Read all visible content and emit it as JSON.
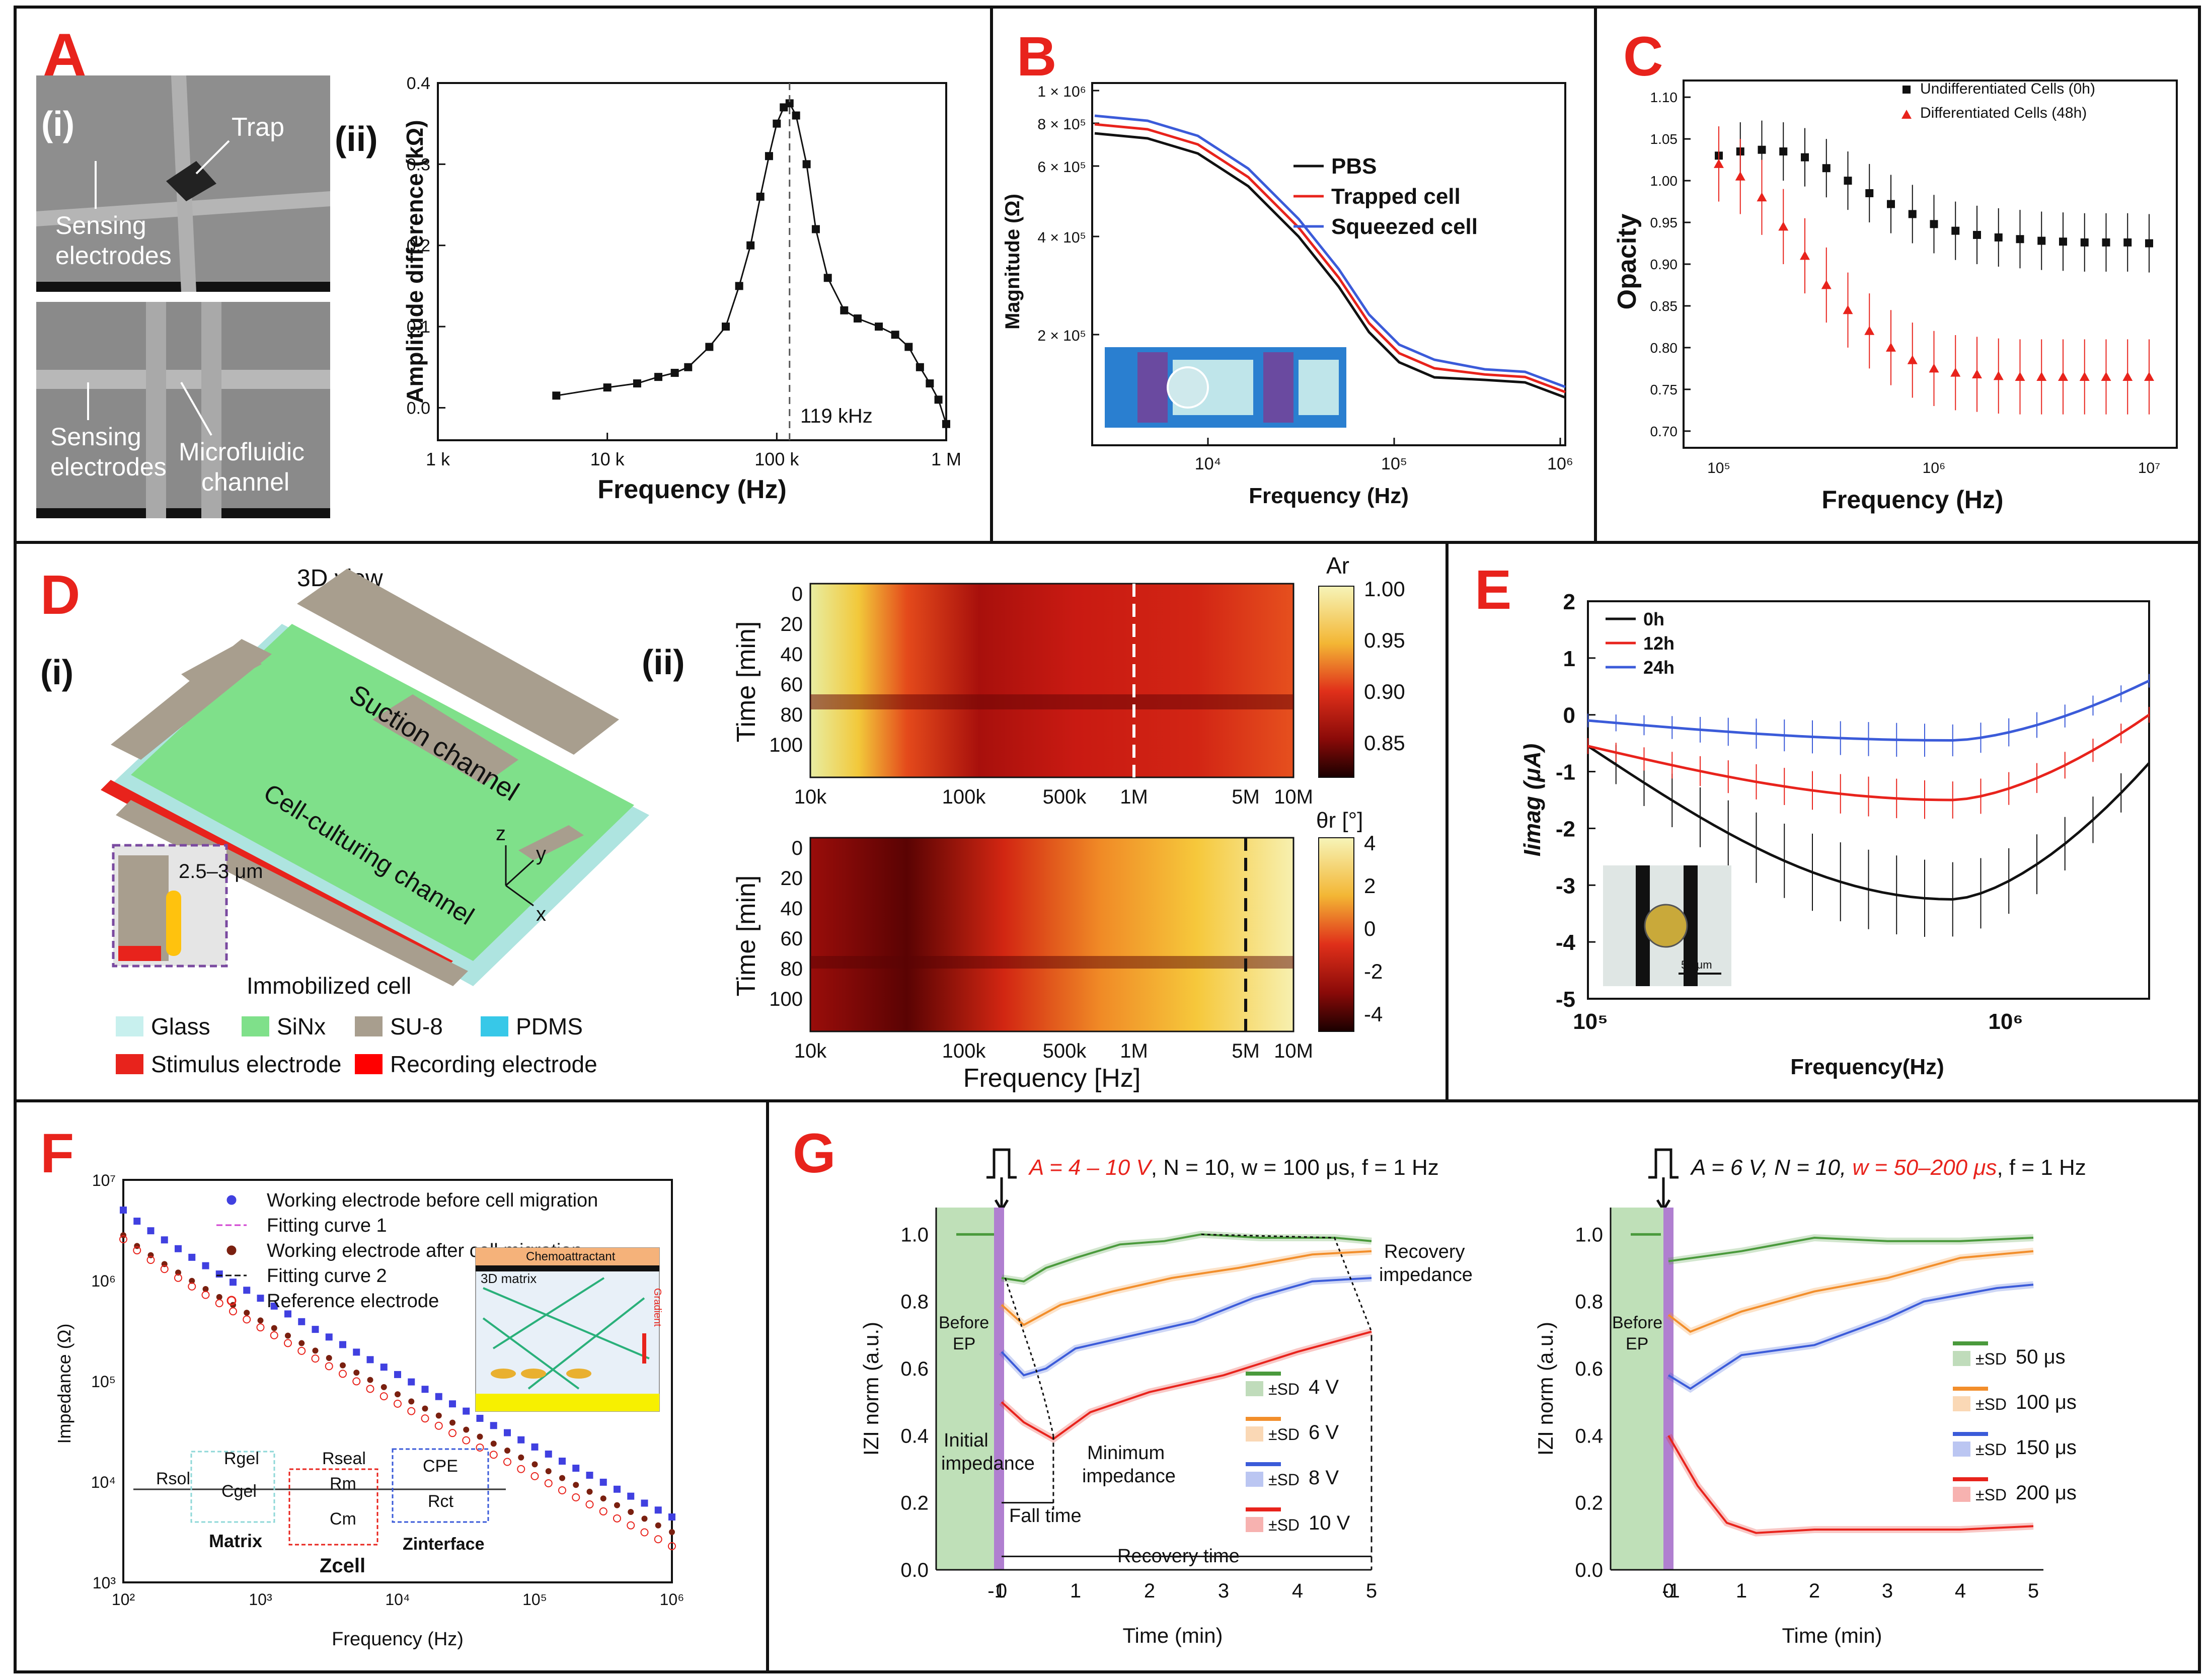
{
  "colors": {
    "red": "#e8231c",
    "blue": "#3b5bd9",
    "black": "#111111",
    "green": "#4a9a3c",
    "orange": "#f28e2b",
    "purple": "#b07fd0"
  },
  "panelA": {
    "label": "A",
    "sub_i": "(i)",
    "sub_ii": "(ii)",
    "sem": {
      "trap": "Trap",
      "sensing": "Sensing electrodes",
      "sensing2": "Sensing electrodes",
      "microfluidic": "Microfluidic channel"
    },
    "chart": {
      "type": "line",
      "title": "",
      "xlabel": "Frequency (Hz)",
      "ylabel": "Amplitude difference (kΩ)",
      "xticks": [
        "1 k",
        "10 k",
        "100 k",
        "1 M"
      ],
      "yticks": [
        "0.0",
        "0.1",
        "0.2",
        "0.3",
        "0.4"
      ],
      "annotation": "119 kHz",
      "x": [
        5000,
        10000,
        15000,
        20000,
        25000,
        30000,
        40000,
        50000,
        60000,
        70000,
        80000,
        90000,
        100000,
        110000,
        119000,
        130000,
        150000,
        170000,
        200000,
        250000,
        300000,
        400000,
        500000,
        600000,
        700000,
        800000,
        900000,
        1000000
      ],
      "y": [
        0.015,
        0.025,
        0.03,
        0.038,
        0.043,
        0.05,
        0.075,
        0.1,
        0.15,
        0.2,
        0.26,
        0.31,
        0.35,
        0.37,
        0.375,
        0.36,
        0.3,
        0.22,
        0.16,
        0.12,
        0.11,
        0.1,
        0.09,
        0.075,
        0.05,
        0.03,
        0.01,
        -0.02
      ]
    }
  },
  "panelB": {
    "label": "B",
    "chart": {
      "type": "line",
      "xlabel": "Frequency (Hz)",
      "ylabel": "Magnitude (Ω)",
      "xticks": [
        "10⁴",
        "10⁵",
        "10⁶"
      ],
      "yticks": [
        "1 × 10⁶",
        "8 × 10⁵",
        "6 × 10⁵",
        "4 × 10⁵",
        "2 × 10⁵"
      ],
      "series": [
        {
          "name": "PBS",
          "color": "#111111"
        },
        {
          "name": "Trapped cell",
          "color": "#e8231c"
        },
        {
          "name": "Squeezed cell",
          "color": "#3b5bd9"
        }
      ]
    }
  },
  "panelC": {
    "label": "C",
    "chart": {
      "type": "scatter",
      "xlabel": "Frequency (Hz)",
      "ylabel": "Opacity",
      "xticks": [
        "10⁵",
        "10⁶",
        "10⁷"
      ],
      "yticks": [
        "0.70",
        "0.75",
        "0.80",
        "0.85",
        "0.90",
        "0.95",
        "1.00",
        "1.05",
        "1.10"
      ],
      "series": [
        {
          "name": "Undifferentiated Cells (0h)",
          "color": "#111111",
          "values": [
            1.03,
            1.035,
            1.037,
            1.035,
            1.028,
            1.015,
            1.0,
            0.985,
            0.972,
            0.96,
            0.948,
            0.94,
            0.935,
            0.932,
            0.93,
            0.928,
            0.927,
            0.926,
            0.926,
            0.926,
            0.925
          ]
        },
        {
          "name": "Differentiated Cells (48h)",
          "color": "#e8231c",
          "values": [
            1.02,
            1.005,
            0.98,
            0.945,
            0.91,
            0.875,
            0.845,
            0.82,
            0.8,
            0.785,
            0.775,
            0.77,
            0.768,
            0.766,
            0.765,
            0.765,
            0.765,
            0.765,
            0.765,
            0.765,
            0.765
          ]
        }
      ]
    }
  },
  "panelD": {
    "label": "D",
    "sub_i": "(i)",
    "sub_ii": "(ii)",
    "view3d": "3D view",
    "suction": "Suction channel",
    "culturing": "Cell-culturing channel",
    "gap": "2.5–3 μm",
    "immobilized": "Immobilized cell",
    "axz": "z",
    "axy": "y",
    "axx": "x",
    "legend": {
      "glass": "Glass",
      "sin": "SiNx",
      "su8": "SU-8",
      "pdms": "PDMS",
      "stimulus": "Stimulus electrode",
      "recording": "Recording electrode"
    },
    "heat1": {
      "cbar": "Ar",
      "ticks": [
        "1.00",
        "0.95",
        "0.90",
        "0.85"
      ]
    },
    "heat2": {
      "cbar": "θr [°]",
      "ticks": [
        "4",
        "2",
        "0",
        "-2",
        "-4"
      ]
    },
    "ylabel": "Time [min]",
    "yticks": [
      "0",
      "20",
      "40",
      "60",
      "80",
      "100"
    ],
    "xticks": [
      "10k",
      "100k",
      "500k",
      "1M",
      "5M",
      "10M"
    ],
    "xlabel": "Frequency [Hz]"
  },
  "panelE": {
    "label": "E",
    "chart": {
      "type": "line",
      "xlabel": "Frequency(Hz)",
      "ylabel": "Iimag (μA)",
      "xticks": [
        "10⁵",
        "10⁶"
      ],
      "yticks": [
        "2",
        "1",
        "0",
        "-1",
        "-2",
        "-3",
        "-4",
        "-5"
      ],
      "scale": "50 μm",
      "series": [
        {
          "name": "0h",
          "color": "#111111"
        },
        {
          "name": "12h",
          "color": "#e8231c"
        },
        {
          "name": "24h",
          "color": "#3b5bd9"
        }
      ]
    }
  },
  "panelF": {
    "label": "F",
    "chart": {
      "type": "scatter",
      "xlabel": "Frequency (Hz)",
      "ylabel": "Impedance (Ω)",
      "xticks": [
        "10²",
        "10³",
        "10⁴",
        "10⁵",
        "10⁶"
      ],
      "yticks": [
        "10⁷",
        "10⁶",
        "10⁵",
        "10⁴",
        "10³"
      ],
      "legend": [
        "Working electrode before cell migration",
        "Fitting curve 1",
        "Working electrode after cell migration",
        "Fitting curve 2",
        "Reference electrode"
      ]
    },
    "inset": {
      "chemo": "Chemoattractant",
      "matrix3d": "3D matrix",
      "gradient": "Gradient"
    },
    "circuit": {
      "rsol": "Rsol",
      "rgel": "Rgel",
      "cgel": "Cgel",
      "rseal": "Rseal",
      "rm": "Rm",
      "cm": "Cm",
      "cpe": "CPE",
      "rct": "Rct",
      "matrix": "Matrix",
      "zcell": "Zcell",
      "zint": "Zinterface"
    }
  },
  "panelG": {
    "label": "G",
    "left": {
      "params_red": "A = 4 – 10 V",
      "params_rest": ", N = 10, w = 100 μs, f = 1 Hz",
      "legend": [
        "4 V",
        "6 V",
        "8 V",
        "10 V"
      ],
      "sd": "±SD",
      "before": "Before EP",
      "recovery": "Recovery impedance",
      "initial": "Initial impedance",
      "minimum": "Minimum impedance",
      "fall": "Fall time",
      "rtime": "Recovery time"
    },
    "right": {
      "params_a": "A = 6 V, N = 10, ",
      "params_red": "w = 50–200 μs",
      "params_rest": ", f = 1 Hz",
      "legend": [
        "50 μs",
        "100 μs",
        "150 μs",
        "200 μs"
      ],
      "sd": "±SD",
      "before": "Before EP"
    },
    "xlabel": "Time (min)",
    "ylabel": "IZI norm (a.u.)",
    "xticks": [
      "0",
      "1",
      "2",
      "3",
      "4",
      "5"
    ],
    "yticks": [
      "0.0",
      "0.2",
      "0.4",
      "0.6",
      "0.8",
      "1.0"
    ]
  }
}
